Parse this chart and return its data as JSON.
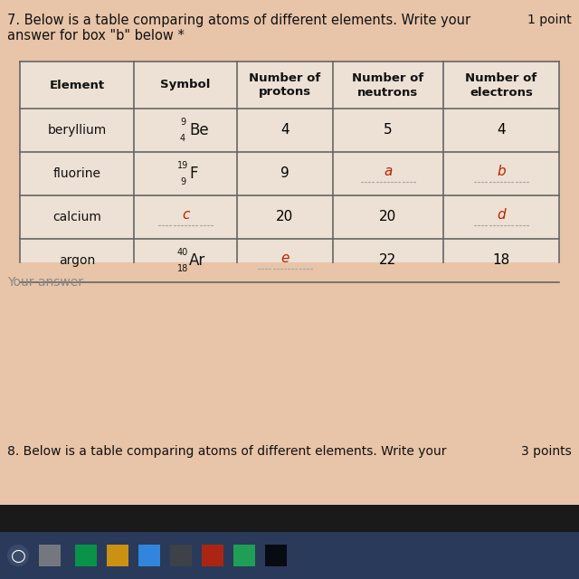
{
  "title_line1": "7. Below is a table comparing atoms of different elements. Write your",
  "title_points": "1 point",
  "title_line2": "answer for box \"b\" below *",
  "bg_color_top": "#e8c4a8",
  "bg_color_table": "#e8c4a8",
  "table_bg": "#ede0d4",
  "header_row": [
    "Element",
    "Symbol",
    "Number of\nprotons",
    "Number of\nneutrons",
    "Number of\nelectrons"
  ],
  "rows": [
    {
      "element": "beryllium",
      "symbol_main": "Be",
      "symbol_super": "9",
      "symbol_sub": "4",
      "protons": "4",
      "neutrons": "5",
      "electrons": "4",
      "protons_color": "#000000",
      "neutrons_color": "#000000",
      "electrons_color": "#000000",
      "symbol_color": "#000000",
      "symbol_is_blank": false
    },
    {
      "element": "fluorine",
      "symbol_main": "F",
      "symbol_super": "19",
      "symbol_sub": "9",
      "protons": "9",
      "neutrons": "a",
      "electrons": "b",
      "protons_color": "#000000",
      "neutrons_color": "#bb2200",
      "electrons_color": "#bb2200",
      "symbol_color": "#000000",
      "symbol_is_blank": false
    },
    {
      "element": "calcium",
      "symbol_main": "c",
      "symbol_super": "",
      "symbol_sub": "",
      "protons": "20",
      "neutrons": "20",
      "electrons": "d",
      "protons_color": "#000000",
      "neutrons_color": "#000000",
      "electrons_color": "#bb2200",
      "symbol_color": "#bb2200",
      "symbol_is_blank": true
    },
    {
      "element": "argon",
      "symbol_main": "Ar",
      "symbol_super": "40",
      "symbol_sub": "18",
      "protons": "e",
      "neutrons": "22",
      "electrons": "18",
      "protons_color": "#bb2200",
      "neutrons_color": "#000000",
      "electrons_color": "#000000",
      "symbol_color": "#000000",
      "symbol_is_blank": false
    }
  ],
  "footer_text": "Your answer",
  "footer2_text": "8. Below is a table comparing atoms of different elements. Write your",
  "footer2_points": "3 points",
  "taskbar_color": "#2a3a5a"
}
